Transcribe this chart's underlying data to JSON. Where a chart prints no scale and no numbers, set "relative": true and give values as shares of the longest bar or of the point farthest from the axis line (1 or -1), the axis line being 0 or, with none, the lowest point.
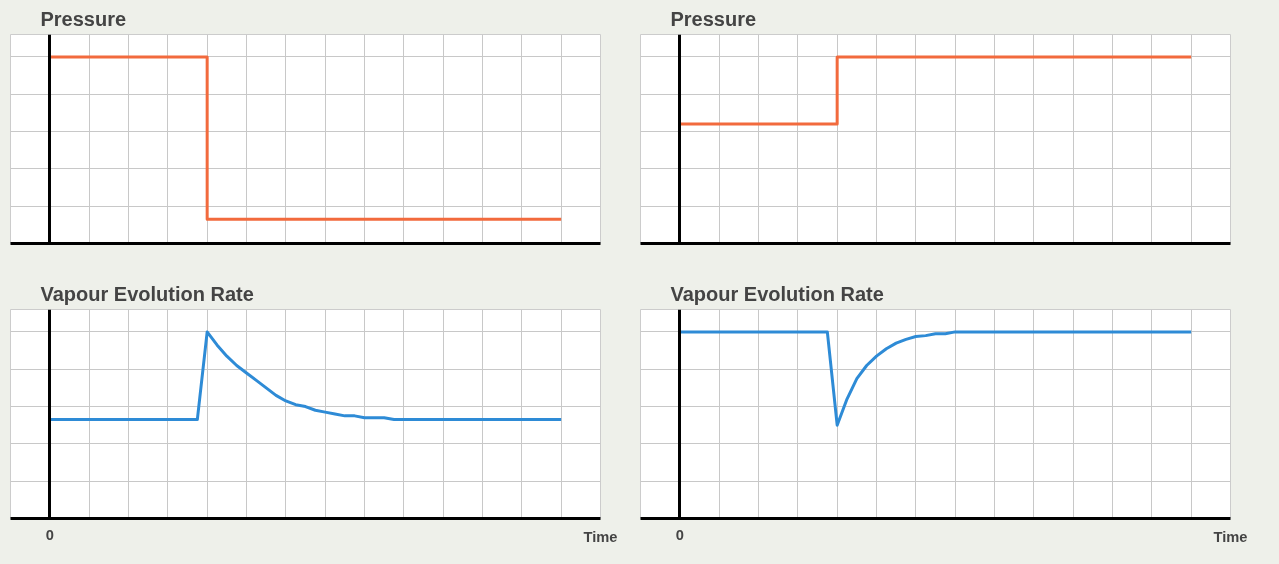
{
  "chart_data": [
    {
      "type": "step",
      "title": "Pressure",
      "relative": true,
      "grid": true,
      "categories": [
        null,
        null,
        null,
        null,
        null,
        null,
        null,
        null,
        null,
        null,
        null,
        null,
        null,
        null
      ],
      "series": [
        {
          "color": "#f26a3d",
          "values": [
            1,
            1,
            1,
            1,
            0.13,
            0.13,
            0.13,
            0.13,
            0.13,
            0.13,
            0.13,
            0.13,
            0.13,
            0.13
          ]
        }
      ]
    },
    {
      "type": "step",
      "title": "Pressure",
      "relative": true,
      "grid": true,
      "categories": [
        null,
        null,
        null,
        null,
        null,
        null,
        null,
        null,
        null,
        null,
        null,
        null,
        null,
        null
      ],
      "series": [
        {
          "color": "#f26a3d",
          "values": [
            0.64,
            0.64,
            0.64,
            0.64,
            1,
            1,
            1,
            1,
            1,
            1,
            1,
            1,
            1,
            1
          ]
        }
      ]
    },
    {
      "type": "line",
      "title": "Vapour Evolution Rate",
      "xlabel": "Time",
      "annotations": [
        "0"
      ],
      "relative": true,
      "grid": true,
      "categories": [
        null,
        null,
        null,
        null,
        null,
        null,
        null,
        null,
        null,
        null,
        null,
        null,
        null,
        null,
        null,
        null,
        null,
        null,
        null,
        null,
        null,
        null,
        null,
        null,
        null,
        null,
        null,
        null,
        null,
        null,
        null,
        null,
        null,
        null,
        null,
        null,
        null,
        null,
        null,
        null,
        null,
        null,
        null,
        null,
        null,
        null,
        null,
        null,
        null,
        null,
        null,
        null,
        null
      ],
      "series": [
        {
          "color": "#2e8bd6",
          "values": [
            0.53,
            0.53,
            0.53,
            0.53,
            0.53,
            0.53,
            0.53,
            0.53,
            0.53,
            0.53,
            0.53,
            0.53,
            0.53,
            0.53,
            0.53,
            0.53,
            1,
            0.93,
            0.87,
            0.82,
            0.78,
            0.74,
            0.7,
            0.66,
            0.63,
            0.61,
            0.6,
            0.58,
            0.57,
            0.56,
            0.55,
            0.55,
            0.54,
            0.54,
            0.54,
            0.53,
            0.53,
            0.53,
            0.53,
            0.53,
            0.53,
            0.53,
            0.53,
            0.53,
            0.53,
            0.53,
            0.53,
            0.53,
            0.53,
            0.53,
            0.53,
            0.53,
            0.53
          ]
        }
      ]
    },
    {
      "type": "line",
      "title": "Vapour Evolution Rate",
      "xlabel": "Time",
      "annotations": [
        "0"
      ],
      "relative": true,
      "grid": true,
      "categories": [
        null,
        null,
        null,
        null,
        null,
        null,
        null,
        null,
        null,
        null,
        null,
        null,
        null,
        null,
        null,
        null,
        null,
        null,
        null,
        null,
        null,
        null,
        null,
        null,
        null,
        null,
        null,
        null,
        null,
        null,
        null,
        null,
        null,
        null,
        null,
        null,
        null,
        null,
        null,
        null,
        null,
        null,
        null,
        null,
        null,
        null,
        null,
        null,
        null,
        null,
        null,
        null,
        null
      ],
      "series": [
        {
          "color": "#2e8bd6",
          "values": [
            1,
            1,
            1,
            1,
            1,
            1,
            1,
            1,
            1,
            1,
            1,
            1,
            1,
            1,
            1,
            1,
            0.5,
            0.64,
            0.75,
            0.82,
            0.87,
            0.91,
            0.94,
            0.96,
            0.975,
            0.98,
            0.99,
            0.99,
            1,
            1,
            1,
            1,
            1,
            1,
            1,
            1,
            1,
            1,
            1,
            1,
            1,
            1,
            1,
            1,
            1,
            1,
            1,
            1,
            1,
            1,
            1,
            1,
            1
          ]
        }
      ]
    }
  ]
}
